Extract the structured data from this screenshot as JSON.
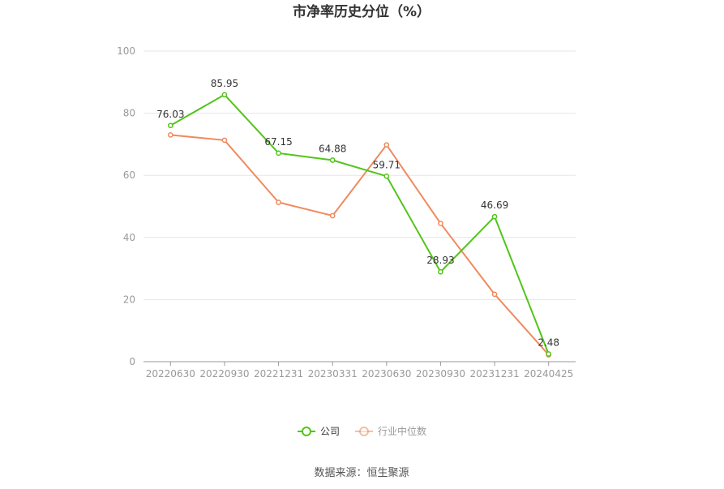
{
  "chart_data": {
    "type": "line",
    "title": "市净率历史分位（%）",
    "categories": [
      "20220630",
      "20220930",
      "20221231",
      "20230331",
      "20230630",
      "20230930",
      "20231231",
      "20240425"
    ],
    "ylim": [
      0,
      100
    ],
    "yticks": [
      0,
      20,
      40,
      60,
      80,
      100
    ],
    "grid": true,
    "legend_position": "bottom",
    "series": [
      {
        "name": "公司",
        "color": "#52c41a",
        "values": [
          76.03,
          85.95,
          67.15,
          64.88,
          59.71,
          28.93,
          46.69,
          2.48
        ],
        "labels": [
          "76.03",
          "85.95",
          "67.15",
          "64.88",
          "59.71",
          "28.93",
          "46.69",
          "2.48"
        ]
      },
      {
        "name": "行业中位数",
        "color": "#f08a5d",
        "values": [
          73.0,
          71.3,
          51.3,
          47.0,
          69.8,
          44.5,
          21.7,
          2.2
        ]
      }
    ]
  },
  "source_text": "数据来源：恒生聚源"
}
